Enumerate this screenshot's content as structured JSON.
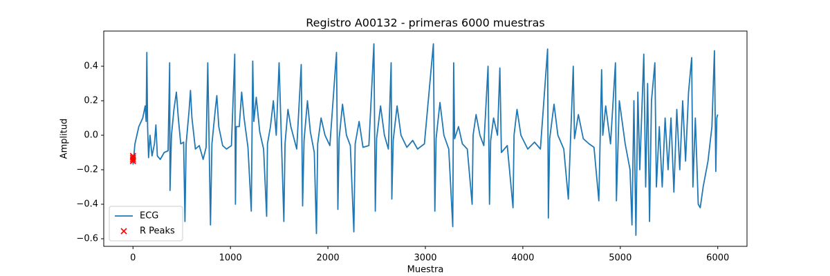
{
  "chart_data": {
    "type": "line",
    "title": "Registro A00132 - primeras 6000 muestras",
    "xlabel": "Muestra",
    "ylabel": "Amplitud",
    "xlim": [
      -300,
      6300
    ],
    "ylim": [
      -0.644,
      0.604
    ],
    "xticks": [
      0,
      1000,
      2000,
      3000,
      4000,
      5000,
      6000
    ],
    "yticks": [
      {
        "value": -0.6,
        "label": "−0.6"
      },
      {
        "value": -0.4,
        "label": "−0.4"
      },
      {
        "value": -0.2,
        "label": "−0.2"
      },
      {
        "value": 0,
        "label": "0.0"
      },
      {
        "value": 0.2,
        "label": "0.2"
      },
      {
        "value": 0.4,
        "label": "0.4"
      }
    ],
    "legend": "lower left",
    "series": [
      {
        "name": "ECG",
        "type": "line",
        "color": "#1f77b4",
        "x": [
          0,
          20,
          60,
          100,
          125,
          135,
          142,
          150,
          160,
          175,
          195,
          220,
          235,
          250,
          280,
          320,
          360,
          376,
          380,
          395,
          420,
          445,
          465,
          490,
          520,
          533,
          545,
          575,
          590,
          605,
          640,
          680,
          720,
          750,
          767,
          795,
          810,
          845,
          860,
          880,
          920,
          960,
          1010,
          1044,
          1051,
          1060,
          1090,
          1115,
          1140,
          1180,
          1214,
          1229,
          1240,
          1265,
          1300,
          1340,
          1371,
          1380,
          1410,
          1440,
          1470,
          1499,
          1548,
          1560,
          1590,
          1620,
          1680,
          1726,
          1740,
          1755,
          1790,
          1820,
          1860,
          1882,
          1895,
          1930,
          1970,
          2020,
          2088,
          2102,
          2115,
          2150,
          2190,
          2230,
          2266,
          2280,
          2320,
          2360,
          2420,
          2472,
          2486,
          2500,
          2540,
          2580,
          2620,
          2649,
          2656,
          2670,
          2710,
          2750,
          2810,
          2870,
          2920,
          2990,
          3082,
          3097,
          3110,
          3150,
          3190,
          3240,
          3281,
          3290,
          3300,
          3340,
          3380,
          3430,
          3480,
          3490,
          3520,
          3560,
          3600,
          3643,
          3658,
          3670,
          3700,
          3740,
          3764,
          3780,
          3840,
          3899,
          3910,
          3940,
          3980,
          4050,
          4120,
          4180,
          4254,
          4262,
          4275,
          4320,
          4360,
          4420,
          4467,
          4517,
          4530,
          4570,
          4620,
          4680,
          4730,
          4780,
          4808,
          4820,
          4850,
          4900,
          4950,
          4960,
          4990,
          5050,
          5100,
          5120,
          5140,
          5160,
          5180,
          5200,
          5241,
          5260,
          5280,
          5300,
          5320,
          5355,
          5370,
          5400,
          5430,
          5460,
          5490,
          5520,
          5550,
          5580,
          5610,
          5640,
          5670,
          5700,
          5732,
          5745,
          5770,
          5800,
          5820,
          5850,
          5900,
          5940,
          5966,
          5980,
          5990,
          6000
        ],
        "values": [
          -0.17,
          -0.05,
          0.05,
          0.1,
          0.17,
          0.08,
          0.48,
          0.05,
          -0.13,
          0.0,
          -0.12,
          -0.05,
          0.06,
          -0.12,
          -0.14,
          -0.1,
          -0.09,
          0.42,
          -0.32,
          0.0,
          0.15,
          0.25,
          0.1,
          -0.05,
          -0.04,
          -0.5,
          -0.05,
          0.14,
          0.26,
          0.1,
          -0.08,
          -0.06,
          -0.14,
          -0.07,
          0.42,
          -0.52,
          -0.05,
          0.15,
          0.23,
          0.05,
          -0.06,
          -0.08,
          -0.06,
          0.47,
          -0.4,
          0.05,
          0.05,
          0.25,
          0.1,
          -0.07,
          -0.44,
          0.43,
          0.08,
          0.22,
          0.02,
          -0.08,
          -0.47,
          -0.05,
          0.05,
          0.2,
          0.0,
          0.42,
          -0.5,
          -0.05,
          0.15,
          0.05,
          -0.08,
          0.41,
          -0.41,
          -0.03,
          0.2,
          0.02,
          -0.1,
          -0.57,
          -0.05,
          0.1,
          0.0,
          -0.06,
          0.48,
          -0.43,
          -0.02,
          0.18,
          0.0,
          -0.06,
          -0.56,
          -0.05,
          0.08,
          -0.07,
          -0.06,
          0.53,
          -0.44,
          -0.02,
          0.17,
          0.0,
          -0.08,
          0.42,
          -0.37,
          -0.03,
          0.17,
          0.0,
          -0.07,
          -0.03,
          -0.08,
          -0.05,
          0.53,
          -0.44,
          -0.02,
          0.19,
          0.0,
          -0.08,
          -0.53,
          0.42,
          -0.02,
          0.05,
          -0.05,
          -0.08,
          -0.4,
          0.0,
          0.12,
          0.0,
          -0.06,
          0.4,
          -0.4,
          -0.03,
          0.1,
          0.0,
          0.39,
          -0.1,
          -0.06,
          -0.42,
          0.0,
          0.15,
          0.0,
          -0.08,
          -0.04,
          -0.08,
          0.5,
          -0.48,
          -0.02,
          0.18,
          0.0,
          -0.08,
          -0.37,
          0.4,
          -0.02,
          0.12,
          -0.02,
          -0.05,
          -0.07,
          -0.38,
          0.38,
          0.0,
          0.17,
          -0.05,
          0.42,
          -0.38,
          0.2,
          -0.05,
          -0.2,
          -0.52,
          0.2,
          -0.58,
          0.25,
          -0.2,
          0.47,
          -0.3,
          0.3,
          -0.5,
          0.2,
          0.42,
          -0.3,
          0.05,
          -0.3,
          0.1,
          -0.2,
          0.1,
          -0.33,
          0.15,
          -0.2,
          0.2,
          -0.15,
          0.25,
          0.45,
          -0.3,
          0.1,
          -0.4,
          -0.42,
          -0.3,
          -0.15,
          0.05,
          0.49,
          -0.21,
          0.1,
          0.12
        ]
      },
      {
        "name": "R Peaks",
        "type": "scatter",
        "color": "#ff0000",
        "x": [
          0,
          0,
          0,
          0
        ],
        "values": [
          -0.12,
          -0.13,
          -0.14,
          -0.15
        ]
      }
    ]
  }
}
